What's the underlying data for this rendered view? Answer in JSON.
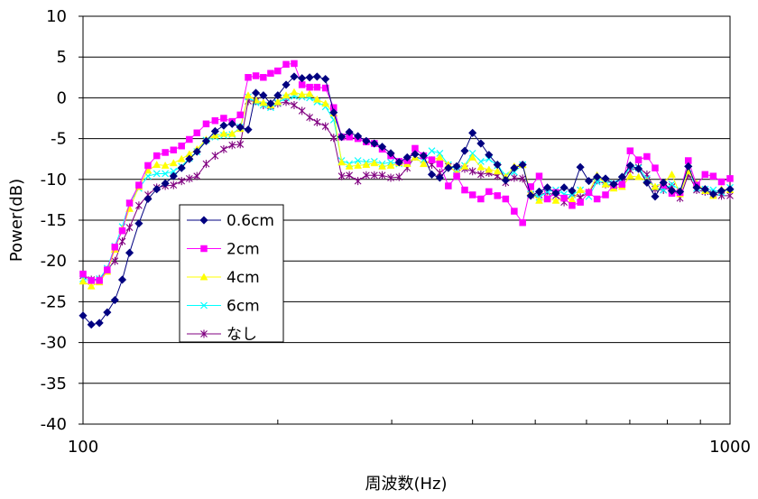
{
  "chart_data": {
    "type": "line",
    "xlabel": "周波数(Hz)",
    "ylabel": "Power(dB)",
    "x_scale": "log",
    "xlim": [
      100,
      1000
    ],
    "ylim": [
      -40,
      10
    ],
    "x_ticks": [
      100,
      1000
    ],
    "x_tick_labels": [
      "100",
      "1000"
    ],
    "y_ticks": [
      10,
      5,
      0,
      -5,
      -10,
      -15,
      -20,
      -25,
      -30,
      -35,
      -40
    ],
    "y_tick_labels": [
      "10",
      "5",
      "0",
      "-5",
      "-10",
      "-15",
      "-20",
      "-25",
      "-30",
      "-35",
      "-40"
    ],
    "grid": "horizontal major gridlines, log minor tick marks on x",
    "legend_position": "inside, left-center",
    "x": [
      100,
      103,
      106,
      109,
      112,
      115,
      118,
      122,
      126,
      130,
      134,
      138,
      142,
      146,
      150,
      155,
      160,
      165,
      170,
      175,
      180,
      185,
      190,
      195,
      200,
      206,
      212,
      218,
      224,
      230,
      237,
      244,
      251,
      258,
      266,
      274,
      282,
      290,
      299,
      308,
      317,
      326,
      336,
      346,
      356,
      367,
      378,
      389,
      400,
      412,
      424,
      437,
      450,
      464,
      478,
      492,
      507,
      522,
      538,
      554,
      570,
      587,
      605,
      623,
      642,
      661,
      681,
      701,
      722,
      744,
      766,
      789,
      813,
      837,
      862,
      888,
      915,
      942,
      970,
      1000
    ],
    "series": [
      {
        "name": "0.6cm",
        "color": "#000080",
        "marker": "diamond",
        "values": [
          -26.7,
          -27.8,
          -27.6,
          -26.3,
          -24.8,
          -22.3,
          -19.0,
          -15.4,
          -12.4,
          -11.2,
          -10.5,
          -9.6,
          -8.6,
          -7.5,
          -6.6,
          -5.3,
          -4.1,
          -3.4,
          -3.2,
          -3.6,
          -3.9,
          0.6,
          0.3,
          -0.7,
          0.3,
          1.6,
          2.6,
          2.4,
          2.5,
          2.6,
          2.3,
          -1.8,
          -4.8,
          -4.2,
          -4.7,
          -5.3,
          -5.6,
          -6.0,
          -6.8,
          -7.9,
          -7.3,
          -6.9,
          -7.1,
          -9.4,
          -9.8,
          -8.6,
          -8.4,
          -6.5,
          -4.3,
          -5.6,
          -7.0,
          -8.2,
          -10.1,
          -8.6,
          -8.2,
          -12.0,
          -11.5,
          -11.0,
          -11.7,
          -11.0,
          -11.4,
          -8.5,
          -10.2,
          -9.7,
          -9.9,
          -10.6,
          -9.7,
          -8.3,
          -8.7,
          -10.4,
          -12.1,
          -10.4,
          -11.4,
          -11.5,
          -8.4,
          -11.0,
          -11.2,
          -11.8,
          -11.4,
          -11.2
        ]
      },
      {
        "name": "2cm",
        "color": "#FF00FF",
        "marker": "square",
        "values": [
          -21.6,
          -22.4,
          -22.4,
          -21.1,
          -18.3,
          -16.3,
          -12.9,
          -10.7,
          -8.3,
          -7.1,
          -6.7,
          -6.4,
          -5.9,
          -5.1,
          -4.3,
          -3.2,
          -2.8,
          -2.5,
          -2.9,
          -2.1,
          2.5,
          2.7,
          2.5,
          3.0,
          3.3,
          4.1,
          4.2,
          1.6,
          1.3,
          1.3,
          1.2,
          -1.2,
          -4.8,
          -4.8,
          -5.0,
          -5.4,
          -5.6,
          -6.3,
          -7.1,
          -7.8,
          -7.7,
          -6.2,
          -7.1,
          -7.6,
          -8.1,
          -10.8,
          -9.6,
          -11.3,
          -11.9,
          -12.4,
          -11.5,
          -12.0,
          -12.4,
          -13.9,
          -15.3,
          -10.9,
          -9.6,
          -12.4,
          -11.6,
          -12.3,
          -13.2,
          -12.8,
          -11.6,
          -12.4,
          -11.9,
          -10.7,
          -10.6,
          -6.5,
          -7.6,
          -7.2,
          -8.6,
          -10.7,
          -11.7,
          -11.6,
          -7.7,
          -10.7,
          -9.4,
          -9.6,
          -10.3,
          -9.9
        ]
      },
      {
        "name": "4cm",
        "color": "#FFFF00",
        "marker": "triangle",
        "values": [
          -22.5,
          -23.1,
          -22.6,
          -21.3,
          -18.6,
          -16.1,
          -13.6,
          -10.9,
          -8.9,
          -8.2,
          -8.3,
          -8.0,
          -7.5,
          -6.9,
          -6.3,
          -5.1,
          -4.6,
          -4.4,
          -4.4,
          -3.8,
          0.3,
          -0.3,
          -0.6,
          -0.9,
          -0.5,
          0.3,
          0.7,
          0.4,
          0.5,
          -0.2,
          -0.7,
          -1.9,
          -7.9,
          -8.4,
          -8.3,
          -8.2,
          -8.0,
          -8.4,
          -8.3,
          -8.0,
          -8.1,
          -7.3,
          -8.1,
          -7.6,
          -7.3,
          -8.2,
          -9.3,
          -8.4,
          -7.3,
          -8.5,
          -8.8,
          -9.0,
          -9.7,
          -8.4,
          -8.2,
          -11.6,
          -12.6,
          -12.3,
          -12.6,
          -12.3,
          -12.5,
          -11.3,
          -11.6,
          -9.5,
          -10.6,
          -11.1,
          -10.9,
          -9.6,
          -9.7,
          -10.2,
          -10.9,
          -10.4,
          -9.4,
          -11.8,
          -9.0,
          -10.5,
          -11.4,
          -12.0,
          -11.2,
          -11.3
        ]
      },
      {
        "name": "6cm",
        "color": "#00FFFF",
        "marker": "x",
        "values": [
          -22.2,
          -22.4,
          -22.2,
          -20.9,
          -18.2,
          -15.8,
          -12.9,
          -11.1,
          -9.6,
          -9.3,
          -9.3,
          -9.0,
          -8.4,
          -7.4,
          -6.6,
          -5.2,
          -4.8,
          -4.6,
          -4.5,
          -3.6,
          0.1,
          -0.6,
          -0.9,
          -1.2,
          -0.6,
          0.0,
          0.2,
          0.1,
          0.0,
          -0.5,
          -1.1,
          -2.7,
          -7.7,
          -8.1,
          -7.7,
          -7.9,
          -7.8,
          -8.1,
          -7.9,
          -8.1,
          -8.0,
          -7.3,
          -7.6,
          -6.5,
          -6.8,
          -8.2,
          -8.8,
          -8.3,
          -6.8,
          -7.8,
          -7.5,
          -8.3,
          -9.5,
          -9.1,
          -8.2,
          -11.8,
          -12.2,
          -11.5,
          -11.3,
          -11.8,
          -11.9,
          -11.3,
          -12.1,
          -10.3,
          -10.3,
          -10.5,
          -10.0,
          -8.5,
          -8.6,
          -9.9,
          -11.0,
          -11.3,
          -10.6,
          -11.3,
          -8.7,
          -11.1,
          -11.2,
          -11.3,
          -11.6,
          -11.0
        ]
      },
      {
        "name": "なし",
        "color": "#800080",
        "marker": "asterisk",
        "values": [
          -21.8,
          -22.3,
          -22.2,
          -21.1,
          -20.0,
          -17.6,
          -15.9,
          -13.2,
          -11.9,
          -11.0,
          -10.8,
          -10.7,
          -10.2,
          -9.9,
          -9.6,
          -8.1,
          -7.1,
          -6.3,
          -5.8,
          -5.7,
          -0.4,
          -0.4,
          -0.9,
          -1.0,
          -0.7,
          -0.5,
          -0.9,
          -1.6,
          -2.4,
          -3.0,
          -3.5,
          -4.9,
          -9.6,
          -9.5,
          -10.2,
          -9.5,
          -9.5,
          -9.5,
          -9.8,
          -9.7,
          -8.6,
          -7.2,
          -7.6,
          -8.2,
          -9.2,
          -8.4,
          -8.5,
          -8.7,
          -9.0,
          -9.4,
          -9.2,
          -9.6,
          -10.4,
          -9.8,
          -9.9,
          -11.9,
          -11.9,
          -11.6,
          -12.0,
          -12.8,
          -11.8,
          -12.2,
          -11.6,
          -10.1,
          -10.6,
          -10.8,
          -10.4,
          -8.9,
          -8.5,
          -9.4,
          -11.2,
          -11.3,
          -10.9,
          -12.3,
          -9.4,
          -11.3,
          -11.5,
          -11.8,
          -12.0,
          -12.0
        ]
      }
    ]
  }
}
